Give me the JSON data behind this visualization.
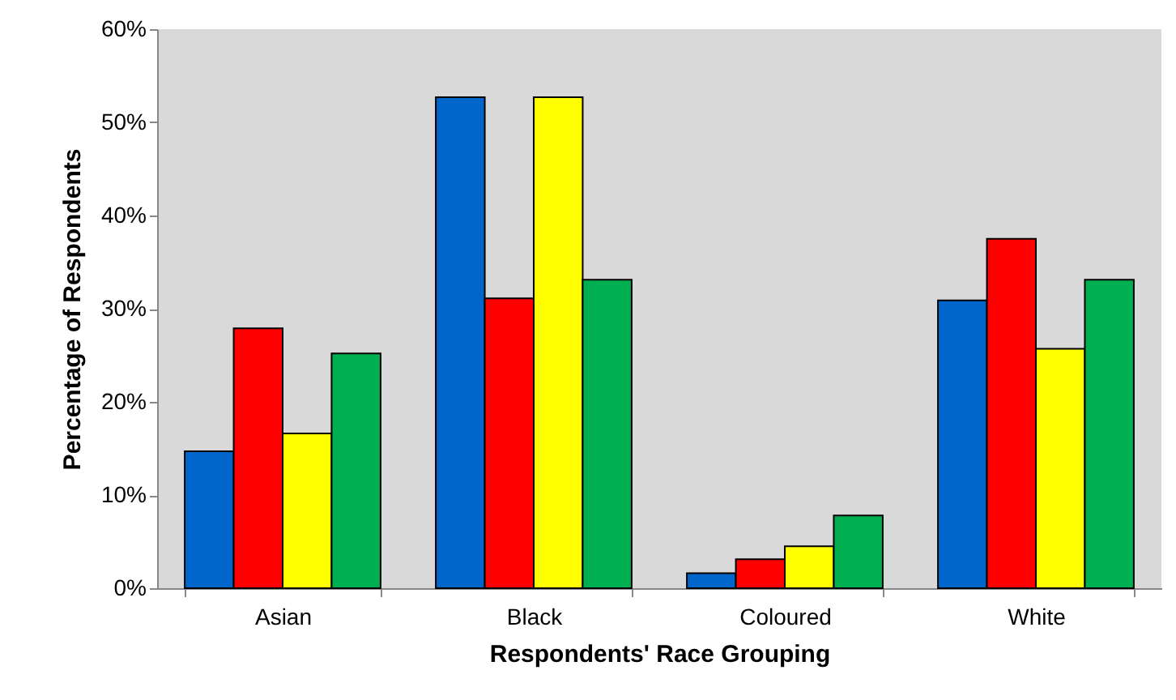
{
  "chart_data": {
    "type": "bar",
    "xlabel": "Respondents' Race Grouping",
    "ylabel": "Percentage of Respondents",
    "categories": [
      "Asian",
      "Black",
      "Coloured",
      "White"
    ],
    "series": [
      {
        "color": "#0066cc",
        "values": [
          14.7,
          52.7,
          1.6,
          30.9
        ]
      },
      {
        "color": "#ff0000",
        "values": [
          27.9,
          31.1,
          3.1,
          37.5
        ]
      },
      {
        "color": "#ffff00",
        "values": [
          16.6,
          52.7,
          4.5,
          25.7
        ]
      },
      {
        "color": "#00b050",
        "values": [
          25.2,
          33.1,
          7.8,
          33.1
        ]
      }
    ],
    "ylim": [
      0,
      60
    ],
    "yticks": [
      {
        "value": 0,
        "label": "0%"
      },
      {
        "value": 10,
        "label": "10%"
      },
      {
        "value": 20,
        "label": "20%"
      },
      {
        "value": 30,
        "label": "30%"
      },
      {
        "value": 40,
        "label": "40%"
      },
      {
        "value": 50,
        "label": "50%"
      },
      {
        "value": 60,
        "label": "60%"
      }
    ],
    "grid": false
  }
}
